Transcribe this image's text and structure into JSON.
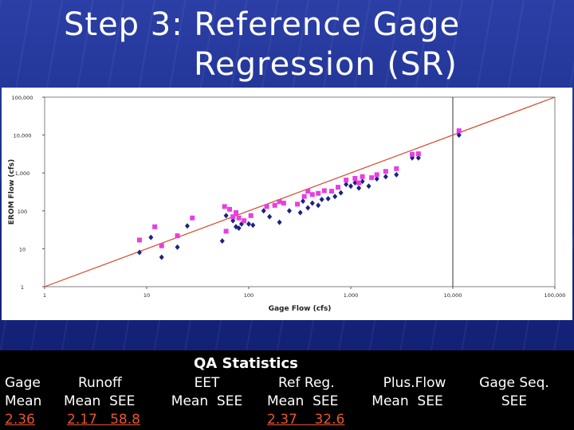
{
  "title": {
    "line1": "Step 3: Reference Gage",
    "line2": "Regression (SR)"
  },
  "chart_data": {
    "type": "scatter",
    "xscale": "log",
    "yscale": "log",
    "xlim": [
      1,
      100000
    ],
    "ylim": [
      1,
      100000
    ],
    "xlabel": "Gage Flow (cfs)",
    "ylabel": "EROM Flow (cfs)",
    "x_ticks": [
      "1",
      "10",
      "100",
      "1,000",
      "10,000",
      "100,000"
    ],
    "y_ticks": [
      "1",
      "10",
      "100",
      "1,000",
      "10,000",
      "100,000"
    ],
    "reference_line": {
      "type": "1:1",
      "color": "#d9432a"
    },
    "vertical_line_x": 10000,
    "grid": false,
    "series": [
      {
        "color": "#1a237e",
        "marker": "diamond",
        "points": [
          [
            8.5,
            8
          ],
          [
            11,
            20
          ],
          [
            14,
            6
          ],
          [
            20,
            11
          ],
          [
            25,
            40
          ],
          [
            55,
            16
          ],
          [
            60,
            75
          ],
          [
            70,
            55
          ],
          [
            75,
            38
          ],
          [
            80,
            35
          ],
          [
            85,
            45
          ],
          [
            100,
            45
          ],
          [
            110,
            42
          ],
          [
            140,
            100
          ],
          [
            160,
            70
          ],
          [
            200,
            50
          ],
          [
            250,
            100
          ],
          [
            320,
            90
          ],
          [
            340,
            180
          ],
          [
            380,
            120
          ],
          [
            420,
            160
          ],
          [
            480,
            140
          ],
          [
            520,
            200
          ],
          [
            600,
            210
          ],
          [
            700,
            240
          ],
          [
            800,
            300
          ],
          [
            900,
            500
          ],
          [
            1000,
            450
          ],
          [
            1100,
            550
          ],
          [
            1200,
            400
          ],
          [
            1300,
            600
          ],
          [
            1500,
            450
          ],
          [
            1800,
            700
          ],
          [
            2200,
            800
          ],
          [
            2800,
            900
          ],
          [
            4000,
            2500
          ],
          [
            4600,
            2500
          ],
          [
            11500,
            10000
          ]
        ]
      },
      {
        "color": "#e83ee0",
        "marker": "square",
        "points": [
          [
            8.5,
            17
          ],
          [
            12,
            38
          ],
          [
            14,
            12
          ],
          [
            20,
            22
          ],
          [
            28,
            65
          ],
          [
            60,
            29
          ],
          [
            58,
            130
          ],
          [
            65,
            110
          ],
          [
            70,
            70
          ],
          [
            75,
            90
          ],
          [
            80,
            65
          ],
          [
            90,
            55
          ],
          [
            105,
            75
          ],
          [
            150,
            130
          ],
          [
            180,
            140
          ],
          [
            200,
            175
          ],
          [
            220,
            160
          ],
          [
            300,
            150
          ],
          [
            350,
            240
          ],
          [
            380,
            330
          ],
          [
            420,
            270
          ],
          [
            480,
            290
          ],
          [
            550,
            340
          ],
          [
            650,
            330
          ],
          [
            750,
            420
          ],
          [
            900,
            650
          ],
          [
            1100,
            720
          ],
          [
            1200,
            550
          ],
          [
            1300,
            800
          ],
          [
            1600,
            750
          ],
          [
            1800,
            900
          ],
          [
            2200,
            1100
          ],
          [
            2800,
            1300
          ],
          [
            4000,
            3100
          ],
          [
            4600,
            3200
          ],
          [
            11500,
            13000
          ]
        ]
      }
    ]
  },
  "stats": {
    "heading": "QA Statistics",
    "columns": [
      {
        "line1": "Gage",
        "line2": "Mean",
        "value": "2.36"
      },
      {
        "line1": "Runoff",
        "line2": "Mean  SEE",
        "value": "2.17   58.8"
      },
      {
        "line1": "EET",
        "line2": "Mean  SEE",
        "value": ""
      },
      {
        "line1": "Ref Reg.",
        "line2": "Mean  SEE",
        "value": "2.37    32.6"
      },
      {
        "line1": "Plus.Flow",
        "line2": "Mean  SEE",
        "value": ""
      },
      {
        "line1": "Gage Seq.",
        "line2": "SEE",
        "value": ""
      }
    ]
  }
}
